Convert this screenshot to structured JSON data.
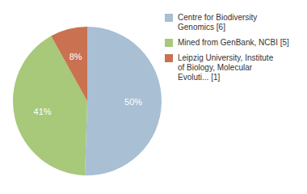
{
  "chart_data": {
    "type": "pie",
    "categories": [
      "Centre for Biodiversity\nGenomics [6]",
      "Mined from GenBank, NCBI [5]",
      "Leipzig University, Institute\nof Biology, Molecular\nEvoluti... [1]"
    ],
    "values": [
      50,
      41,
      8
    ],
    "value_labels": [
      "50%",
      "41%",
      "8%"
    ],
    "data_labels": true,
    "colors": [
      "#a8bfd4",
      "#a8c87a",
      "#c97150"
    ],
    "legend": "upper right"
  }
}
